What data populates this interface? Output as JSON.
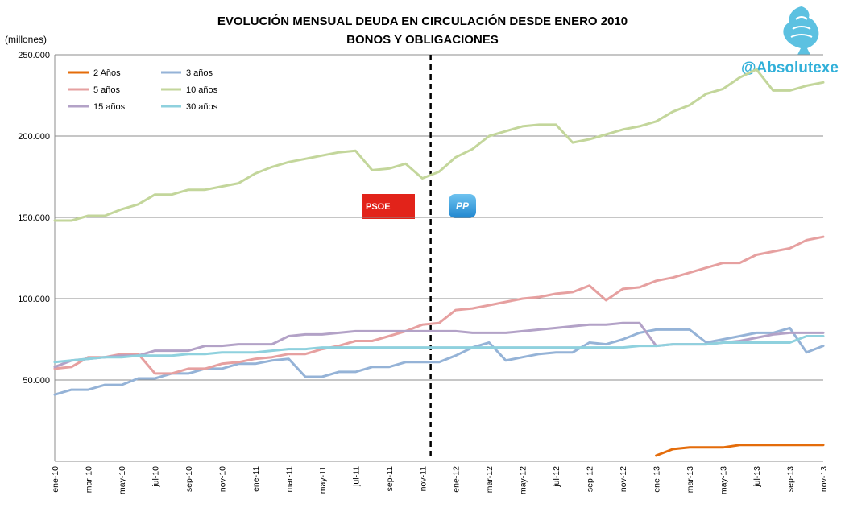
{
  "header": {
    "title_line1": "EVOLUCIÓN MENSUAL DEUDA EN CIRCULACIÓN DESDE ENERO 2010",
    "title_line2": "BONOS Y OBLIGACIONES",
    "unit_label": "(millones)"
  },
  "brand": {
    "handle": "@Absolutexe"
  },
  "parties": {
    "left": "PSOE",
    "right": "PP"
  },
  "colors": {
    "2y": "#e46c0a",
    "3y": "#95b3d7",
    "5y": "#e6a0a0",
    "10y": "#c3d69b",
    "15y": "#b3a2c7",
    "30y": "#8fd1de",
    "grid": "#8c8c8c",
    "divider": "#000000"
  },
  "chart_data": {
    "type": "line",
    "title": "EVOLUCIÓN MENSUAL DEUDA EN CIRCULACIÓN DESDE ENERO 2010 BONOS Y OBLIGACIONES",
    "ylabel": "(millones)",
    "ylim": [
      0,
      250000
    ],
    "y_ticks": [
      {
        "v": 50000,
        "label": "50.000"
      },
      {
        "v": 100000,
        "label": "100.000"
      },
      {
        "v": 150000,
        "label": "150.000"
      },
      {
        "v": 200000,
        "label": "200.000"
      },
      {
        "v": 250000,
        "label": "250.000"
      }
    ],
    "grid": "horizontal",
    "legend_position": "top-left",
    "divider_after": "nov-11",
    "x": [
      "ene-10",
      "feb-10",
      "mar-10",
      "abr-10",
      "may-10",
      "jun-10",
      "jul-10",
      "ago-10",
      "sep-10",
      "oct-10",
      "nov-10",
      "dic-10",
      "ene-11",
      "feb-11",
      "mar-11",
      "abr-11",
      "may-11",
      "jun-11",
      "jul-11",
      "ago-11",
      "sep-11",
      "oct-11",
      "nov-11",
      "dic-11",
      "ene-12",
      "feb-12",
      "mar-12",
      "abr-12",
      "may-12",
      "jun-12",
      "jul-12",
      "ago-12",
      "sep-12",
      "oct-12",
      "nov-12",
      "dic-12",
      "ene-13",
      "feb-13",
      "mar-13",
      "abr-13",
      "may-13",
      "jun-13",
      "jul-13",
      "ago-13",
      "sep-13",
      "oct-13",
      "nov-13"
    ],
    "x_label_every": 2,
    "series": [
      {
        "key": "2y",
        "name": "2 Años",
        "values": [
          null,
          null,
          null,
          null,
          null,
          null,
          null,
          null,
          null,
          null,
          null,
          null,
          null,
          null,
          null,
          null,
          null,
          null,
          null,
          null,
          null,
          null,
          null,
          null,
          null,
          null,
          null,
          null,
          null,
          null,
          null,
          null,
          null,
          null,
          null,
          null,
          3500,
          7500,
          8500,
          8500,
          8500,
          10000,
          10000,
          10000,
          10000,
          10000,
          10000
        ]
      },
      {
        "key": "3y",
        "name": "3 años",
        "values": [
          41000,
          44000,
          44000,
          47000,
          47000,
          51000,
          51000,
          54000,
          54000,
          57000,
          57000,
          60000,
          60000,
          62000,
          63000,
          52000,
          52000,
          55000,
          55000,
          58000,
          58000,
          61000,
          61000,
          61000,
          65000,
          70000,
          73000,
          62000,
          64000,
          66000,
          67000,
          67000,
          73000,
          72000,
          75000,
          79000,
          81000,
          81000,
          81000,
          73000,
          75000,
          77000,
          79000,
          79000,
          82000,
          67000,
          71000
        ]
      },
      {
        "key": "5y",
        "name": "5 años",
        "values": [
          57000,
          58000,
          64000,
          64000,
          66000,
          66000,
          54000,
          54000,
          57000,
          57000,
          60000,
          61000,
          63000,
          64000,
          66000,
          66000,
          69000,
          71000,
          74000,
          74000,
          77000,
          80000,
          84000,
          85000,
          93000,
          94000,
          96000,
          98000,
          100000,
          101000,
          103000,
          104000,
          108000,
          99000,
          106000,
          107000,
          111000,
          113000,
          116000,
          119000,
          122000,
          122000,
          127000,
          129000,
          131000,
          136000,
          138000
        ]
      },
      {
        "key": "10y",
        "name": "10 años",
        "values": [
          148000,
          148000,
          151000,
          151000,
          155000,
          158000,
          164000,
          164000,
          167000,
          167000,
          169000,
          171000,
          177000,
          181000,
          184000,
          186000,
          188000,
          190000,
          191000,
          179000,
          180000,
          183000,
          174000,
          178000,
          187000,
          192000,
          200000,
          203000,
          206000,
          207000,
          207000,
          196000,
          198000,
          201000,
          204000,
          206000,
          209000,
          215000,
          219000,
          226000,
          229000,
          236000,
          241000,
          228000,
          228000,
          231000,
          233000
        ]
      },
      {
        "key": "15y",
        "name": "15 años",
        "values": [
          58000,
          62000,
          63000,
          64000,
          65000,
          65000,
          68000,
          68000,
          68000,
          71000,
          71000,
          72000,
          72000,
          72000,
          77000,
          78000,
          78000,
          79000,
          80000,
          80000,
          80000,
          80000,
          80000,
          80000,
          80000,
          79000,
          79000,
          79000,
          80000,
          81000,
          82000,
          83000,
          84000,
          84000,
          85000,
          85000,
          71000,
          72000,
          72000,
          72000,
          73000,
          74000,
          76000,
          78000,
          79000,
          79000,
          79000
        ]
      },
      {
        "key": "30y",
        "name": "30 años",
        "values": [
          61000,
          62000,
          63000,
          64000,
          64000,
          65000,
          65000,
          65000,
          66000,
          66000,
          67000,
          67000,
          67000,
          68000,
          69000,
          69000,
          70000,
          70000,
          70000,
          70000,
          70000,
          70000,
          70000,
          70000,
          70000,
          70000,
          70000,
          70000,
          70000,
          70000,
          70000,
          70000,
          70000,
          70000,
          70000,
          71000,
          71000,
          72000,
          72000,
          72000,
          73000,
          73000,
          73000,
          73000,
          73000,
          77000,
          77000
        ]
      }
    ]
  }
}
